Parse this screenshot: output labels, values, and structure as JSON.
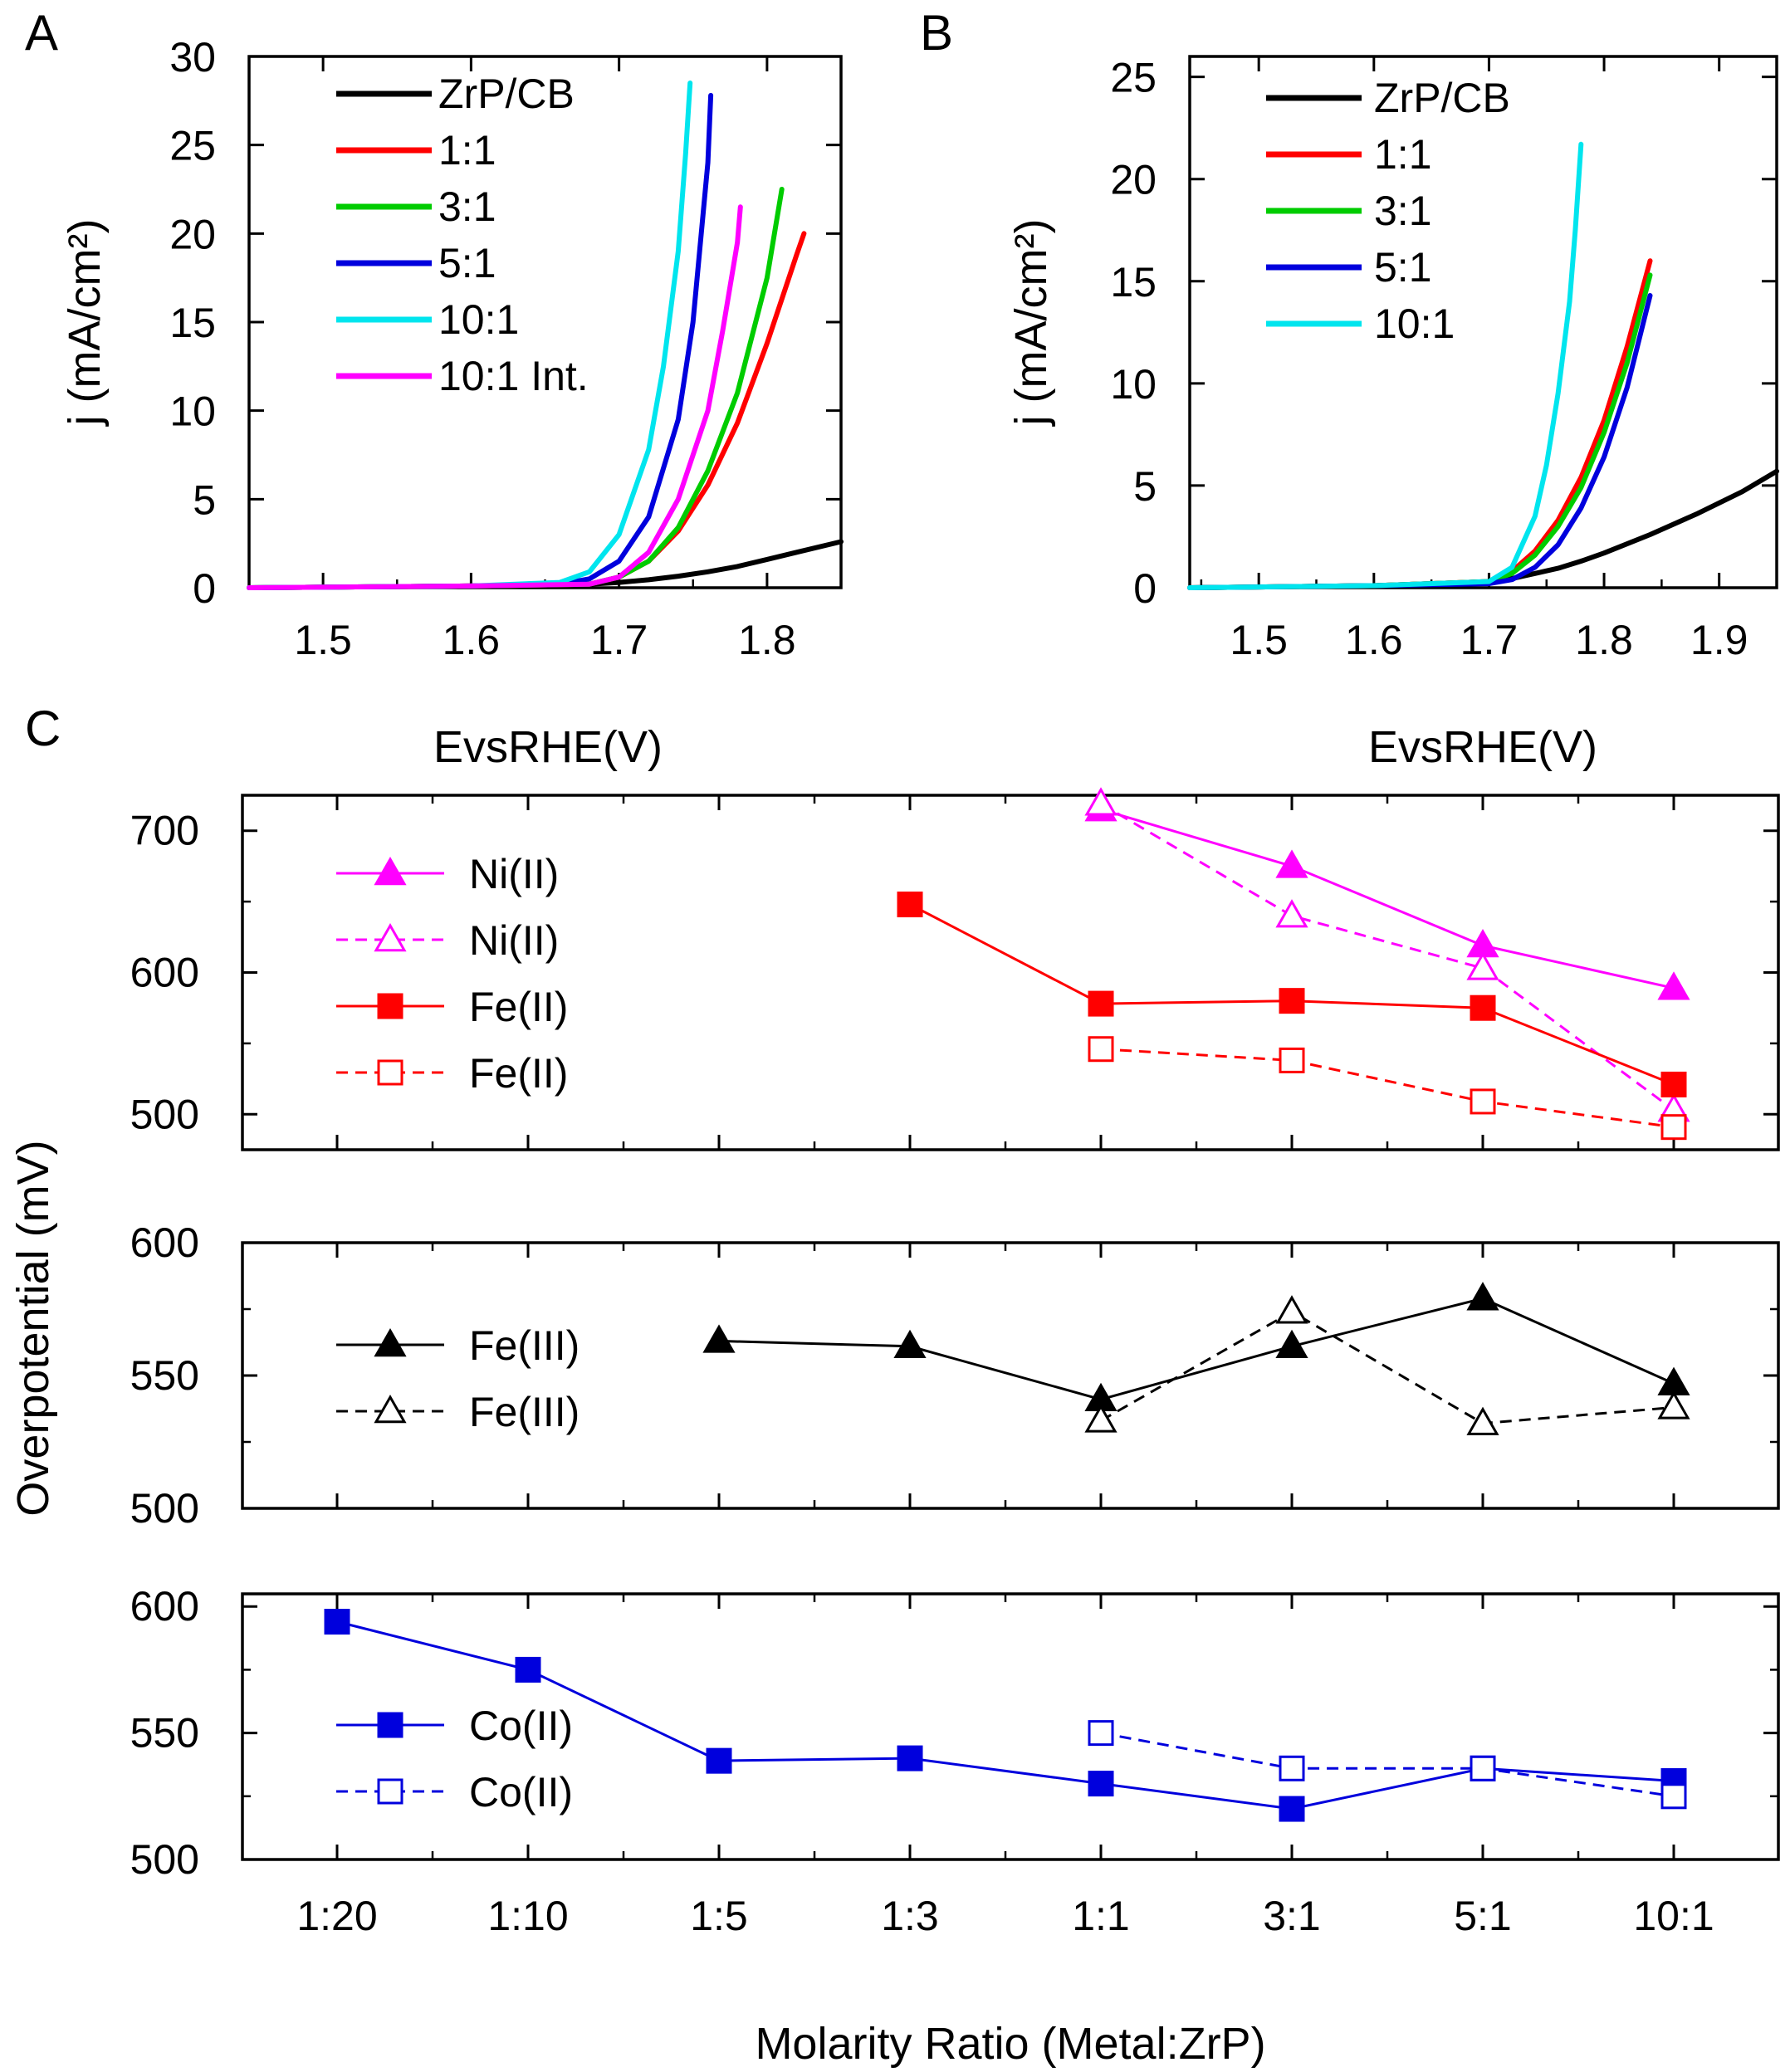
{
  "chart_data": [
    {
      "panel": "A",
      "type": "line",
      "xlabel": "EvsRHE(V)",
      "ylabel": "j (mA/cm²)",
      "xlim": [
        1.45,
        1.85
      ],
      "ylim": [
        0,
        30
      ],
      "xticks": [
        "1.5",
        "1.6",
        "1.7",
        "1.8"
      ],
      "yticks": [
        "0",
        "5",
        "10",
        "15",
        "20",
        "25",
        "30"
      ],
      "legend_position": "top-left",
      "series": [
        {
          "name": "ZrP/CB",
          "color": "#000000",
          "x": [
            1.45,
            1.6,
            1.68,
            1.7,
            1.72,
            1.74,
            1.76,
            1.78,
            1.8,
            1.82,
            1.85
          ],
          "y": [
            0,
            0.1,
            0.2,
            0.3,
            0.45,
            0.65,
            0.9,
            1.2,
            1.6,
            2.0,
            2.6
          ]
        },
        {
          "name": "1:1",
          "color": "#ff0000",
          "x": [
            1.45,
            1.6,
            1.68,
            1.7,
            1.72,
            1.74,
            1.76,
            1.78,
            1.8,
            1.82,
            1.825
          ],
          "y": [
            0,
            0.1,
            0.2,
            0.6,
            1.5,
            3.2,
            5.8,
            9.3,
            13.8,
            18.8,
            20.0
          ]
        },
        {
          "name": "3:1",
          "color": "#00cc00",
          "x": [
            1.45,
            1.6,
            1.68,
            1.7,
            1.72,
            1.74,
            1.76,
            1.78,
            1.8,
            1.81
          ],
          "y": [
            0,
            0.1,
            0.2,
            0.6,
            1.5,
            3.4,
            6.6,
            11.0,
            17.5,
            22.5
          ]
        },
        {
          "name": "5:1",
          "color": "#0000dd",
          "x": [
            1.45,
            1.6,
            1.66,
            1.68,
            1.7,
            1.72,
            1.74,
            1.75,
            1.76,
            1.762
          ],
          "y": [
            0,
            0.1,
            0.2,
            0.5,
            1.5,
            4.0,
            9.5,
            15.0,
            24.0,
            27.8
          ]
        },
        {
          "name": "10:1",
          "color": "#00e5ee",
          "x": [
            1.45,
            1.6,
            1.66,
            1.68,
            1.7,
            1.72,
            1.73,
            1.74,
            1.745,
            1.748
          ],
          "y": [
            0,
            0.1,
            0.3,
            0.9,
            3.0,
            7.8,
            12.5,
            19.0,
            24.5,
            28.5
          ]
        },
        {
          "name": "10:1 Int.",
          "color": "#ff00ff",
          "x": [
            1.45,
            1.6,
            1.68,
            1.7,
            1.72,
            1.74,
            1.76,
            1.77,
            1.78,
            1.782
          ],
          "y": [
            0,
            0.1,
            0.2,
            0.6,
            2.0,
            5.0,
            10.0,
            14.5,
            19.5,
            21.5
          ]
        }
      ]
    },
    {
      "panel": "B",
      "type": "line",
      "xlabel": "EvsRHE(V)",
      "ylabel": "j (mA/cm²)",
      "xlim": [
        1.44,
        1.95
      ],
      "ylim": [
        0,
        26
      ],
      "xticks": [
        "1.5",
        "1.6",
        "1.7",
        "1.8",
        "1.9"
      ],
      "yticks": [
        "0",
        "5",
        "10",
        "15",
        "20",
        "25"
      ],
      "legend_position": "top-left",
      "series": [
        {
          "name": "ZrP/CB",
          "color": "#000000",
          "x": [
            1.44,
            1.6,
            1.7,
            1.72,
            1.74,
            1.76,
            1.78,
            1.8,
            1.84,
            1.88,
            1.92,
            1.95
          ],
          "y": [
            0,
            0.1,
            0.3,
            0.45,
            0.7,
            0.95,
            1.3,
            1.7,
            2.6,
            3.6,
            4.7,
            5.7
          ]
        },
        {
          "name": "1:1",
          "color": "#ff0000",
          "x": [
            1.44,
            1.6,
            1.7,
            1.72,
            1.74,
            1.76,
            1.78,
            1.8,
            1.82,
            1.84
          ],
          "y": [
            0,
            0.1,
            0.3,
            0.8,
            1.8,
            3.3,
            5.4,
            8.2,
            11.8,
            16.0
          ]
        },
        {
          "name": "3:1",
          "color": "#00cc00",
          "x": [
            1.44,
            1.6,
            1.7,
            1.72,
            1.74,
            1.76,
            1.78,
            1.8,
            1.82,
            1.84
          ],
          "y": [
            0,
            0.1,
            0.3,
            0.7,
            1.6,
            3.0,
            4.9,
            7.6,
            11.0,
            15.3
          ]
        },
        {
          "name": "5:1",
          "color": "#0000dd",
          "x": [
            1.44,
            1.6,
            1.7,
            1.72,
            1.74,
            1.76,
            1.78,
            1.8,
            1.82,
            1.84
          ],
          "y": [
            0,
            0.1,
            0.2,
            0.4,
            1.0,
            2.1,
            3.9,
            6.4,
            9.8,
            14.3
          ]
        },
        {
          "name": "10:1",
          "color": "#00e5ee",
          "x": [
            1.44,
            1.6,
            1.7,
            1.72,
            1.74,
            1.75,
            1.76,
            1.77,
            1.775,
            1.78
          ],
          "y": [
            0,
            0.1,
            0.3,
            1.0,
            3.5,
            6.0,
            9.5,
            14.0,
            17.5,
            21.7
          ]
        }
      ]
    },
    {
      "panel": "C",
      "type": "line",
      "xlabel": "Molarity Ratio (Metal:ZrP)",
      "ylabel": "Overpotential (mV)",
      "categories": [
        "1:20",
        "1:10",
        "1:5",
        "1:3",
        "1:1",
        "3:1",
        "5:1",
        "10:1"
      ],
      "subplots": [
        {
          "ylim": [
            475,
            725
          ],
          "yticks": [
            "500",
            "600",
            "700"
          ],
          "series": [
            {
              "name": "Ni(II)",
              "color": "#ff00ff",
              "marker": "triangle",
              "filled": true,
              "dashed": false,
              "values": [
                null,
                null,
                null,
                null,
                715,
                675,
                619,
                589
              ]
            },
            {
              "name": "Ni(II)",
              "color": "#ff00ff",
              "marker": "triangle",
              "filled": false,
              "dashed": true,
              "values": [
                null,
                null,
                null,
                null,
                719,
                640,
                603,
                503
              ]
            },
            {
              "name": "Fe(II)",
              "color": "#ff0000",
              "marker": "square",
              "filled": true,
              "dashed": false,
              "values": [
                null,
                null,
                null,
                648,
                578,
                580,
                575,
                521
              ]
            },
            {
              "name": "Fe(II)",
              "color": "#ff0000",
              "marker": "square",
              "filled": false,
              "dashed": true,
              "values": [
                null,
                null,
                null,
                null,
                546,
                538,
                509,
                491
              ]
            }
          ]
        },
        {
          "ylim": [
            500,
            600
          ],
          "yticks": [
            "500",
            "550",
            "600"
          ],
          "series": [
            {
              "name": "Fe(III)",
              "color": "#000000",
              "marker": "triangle",
              "filled": true,
              "dashed": false,
              "values": [
                null,
                null,
                563,
                561,
                541,
                561,
                579,
                547
              ]
            },
            {
              "name": "Fe(III)",
              "color": "#000000",
              "marker": "triangle",
              "filled": false,
              "dashed": true,
              "values": [
                null,
                null,
                null,
                null,
                533,
                574,
                532,
                538
              ]
            }
          ]
        },
        {
          "ylim": [
            500,
            605
          ],
          "yticks": [
            "500",
            "550",
            "600"
          ],
          "series": [
            {
              "name": "Co(II)",
              "color": "#0000dd",
              "marker": "square",
              "filled": true,
              "dashed": false,
              "values": [
                594,
                575,
                539,
                540,
                530,
                520,
                536,
                531
              ]
            },
            {
              "name": "Co(II)",
              "color": "#0000dd",
              "marker": "square",
              "filled": false,
              "dashed": true,
              "values": [
                null,
                null,
                null,
                null,
                550,
                536,
                536,
                525
              ]
            }
          ]
        }
      ]
    }
  ]
}
